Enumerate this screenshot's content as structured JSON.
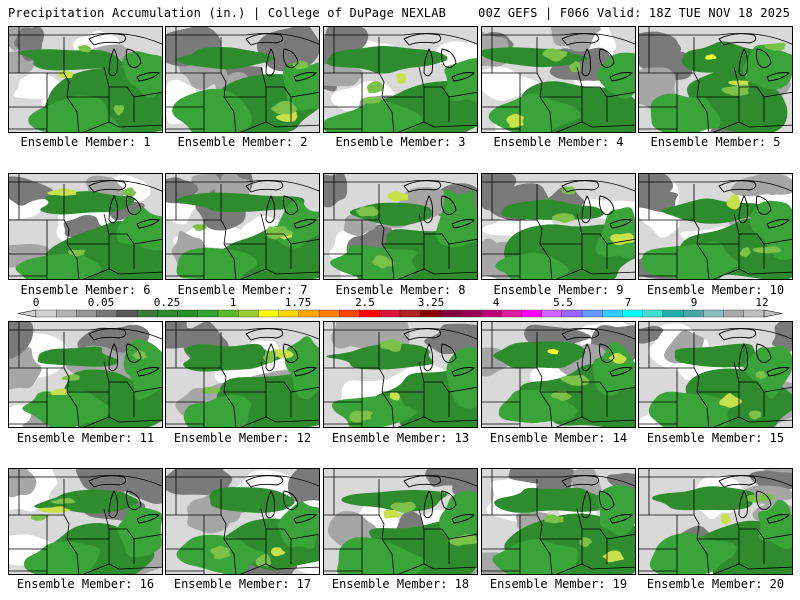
{
  "header": {
    "left": "Precipitation Accumulation (in.) | College of DuPage NEXLAB",
    "right": "00Z GEFS | F066 Valid: 18Z TUE NOV 18 2025"
  },
  "colorbar": {
    "tick_labels": [
      "0",
      "0.05",
      "0.25",
      "1",
      "1.75",
      "2.5",
      "3.25",
      "4",
      "5.5",
      "7",
      "9",
      "12"
    ],
    "colors": [
      "#d2d2d2",
      "#b4b4b4",
      "#969696",
      "#787878",
      "#5a5a5a",
      "#3c7a3c",
      "#2f8a2f",
      "#248f24",
      "#33a333",
      "#5cb82c",
      "#9acd32",
      "#ffff00",
      "#ffd700",
      "#ffa500",
      "#ff7f00",
      "#ff4500",
      "#ff0000",
      "#dc143c",
      "#b22222",
      "#8b0000",
      "#800040",
      "#9b0058",
      "#c0007a",
      "#e01ea0",
      "#ff00ff",
      "#cc66ff",
      "#9966ff",
      "#6699ff",
      "#33ccff",
      "#00ffff",
      "#40e0d0",
      "#20b2aa",
      "#48a8a8",
      "#8fbcbc",
      "#a9a9a9",
      "#c0c0c0"
    ]
  },
  "legend_colors": {
    "white": "#ffffff",
    "light_gray": "#d9d9d9",
    "mid_gray": "#a6a6a6",
    "dark_gray": "#7a7a7a",
    "green_dark": "#2e8b2e",
    "green_mid": "#3aa33a",
    "green_light": "#7cc24a",
    "yellow_green": "#c8e04a",
    "yellow": "#ffff30"
  },
  "members": [
    {
      "label": "Ensemble Member: 1"
    },
    {
      "label": "Ensemble Member: 2"
    },
    {
      "label": "Ensemble Member: 3"
    },
    {
      "label": "Ensemble Member: 4"
    },
    {
      "label": "Ensemble Member: 5"
    },
    {
      "label": "Ensemble Member: 6"
    },
    {
      "label": "Ensemble Member: 7"
    },
    {
      "label": "Ensemble Member: 8"
    },
    {
      "label": "Ensemble Member: 9"
    },
    {
      "label": "Ensemble Member: 10"
    },
    {
      "label": "Ensemble Member: 11"
    },
    {
      "label": "Ensemble Member: 12"
    },
    {
      "label": "Ensemble Member: 13"
    },
    {
      "label": "Ensemble Member: 14"
    },
    {
      "label": "Ensemble Member: 15"
    },
    {
      "label": "Ensemble Member: 16"
    },
    {
      "label": "Ensemble Member: 17"
    },
    {
      "label": "Ensemble Member: 18"
    },
    {
      "label": "Ensemble Member: 19"
    },
    {
      "label": "Ensemble Member: 20"
    }
  ]
}
